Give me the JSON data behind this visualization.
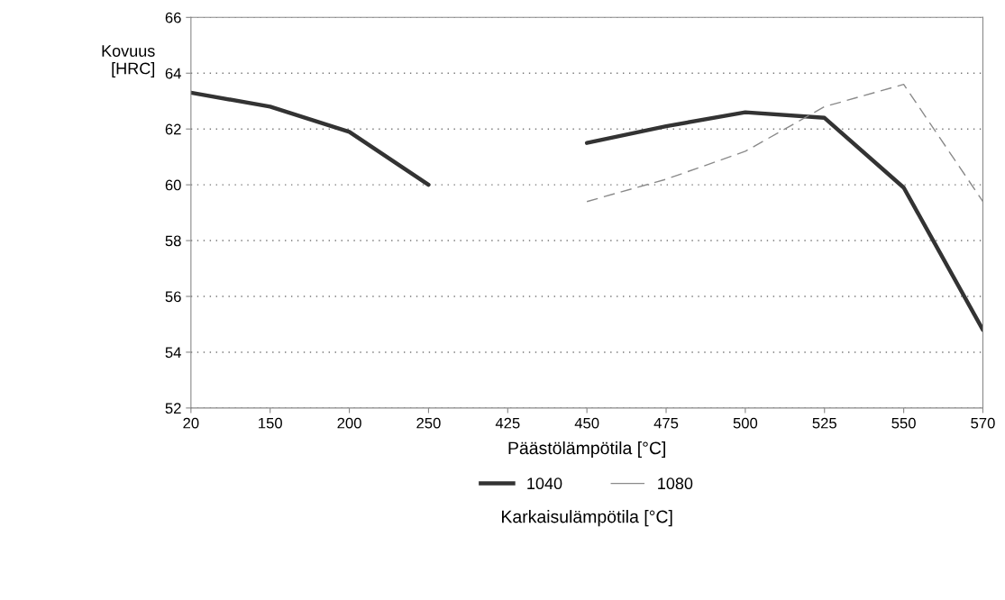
{
  "chart_data": {
    "type": "line",
    "xlabel": "Päästölämpötila [°C]",
    "ylabel": "Kovuus\n[HRC]",
    "legend_title": "Karkaisulämpötila [°C]",
    "categories": [
      "20",
      "150",
      "200",
      "250",
      "425",
      "450",
      "475",
      "500",
      "525",
      "550",
      "570"
    ],
    "series": [
      {
        "name": "1040",
        "color": "#333333",
        "line_style": "solid",
        "values": [
          63.3,
          62.8,
          61.9,
          60.0,
          null,
          61.5,
          62.1,
          62.6,
          62.4,
          59.9,
          54.8
        ]
      },
      {
        "name": "1080",
        "color": "#8a8a8a",
        "line_style": "dashed",
        "values": [
          null,
          null,
          null,
          null,
          null,
          59.4,
          60.2,
          61.2,
          62.8,
          63.6,
          59.4
        ]
      }
    ],
    "ylim": [
      52,
      66
    ],
    "yticks": [
      52,
      54,
      56,
      58,
      60,
      62,
      64,
      66
    ],
    "grid": "y",
    "legend": "bottom",
    "marker": "none"
  }
}
